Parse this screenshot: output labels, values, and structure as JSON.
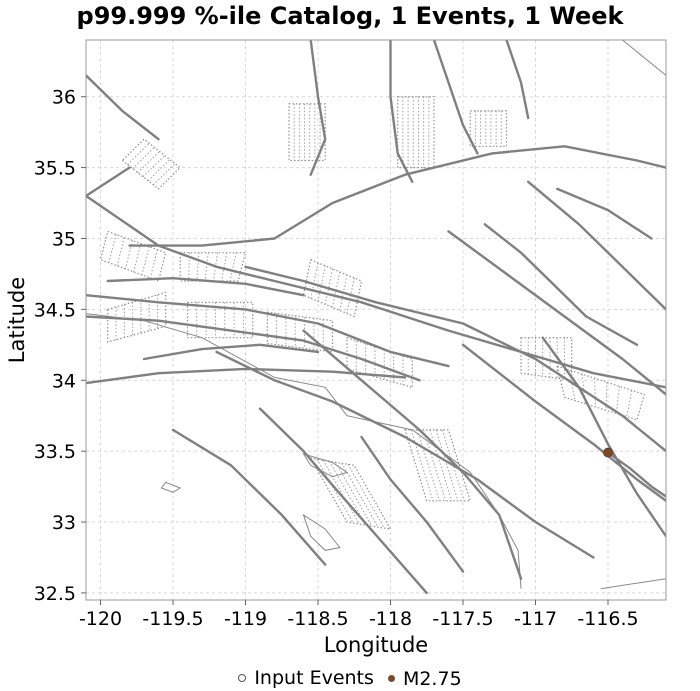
{
  "title": "p99.999 %-ile Catalog, 1 Events, 1 Week",
  "chart_data": {
    "type": "map",
    "xlabel": "Longitude",
    "ylabel": "Latitude",
    "xlim": [
      -120.1,
      -116.1
    ],
    "ylim": [
      32.45,
      36.4
    ],
    "xticks": [
      -120,
      -119.5,
      -119,
      -118.5,
      -118,
      -117.5,
      -117,
      -116.5
    ],
    "xtick_labels": [
      "-120",
      "-119.5",
      "-119",
      "-118.5",
      "-118",
      "-117.5",
      "-117",
      "-116.5"
    ],
    "yticks": [
      32.5,
      33,
      33.5,
      34,
      34.5,
      35,
      35.5,
      36
    ],
    "ytick_labels": [
      "32.5",
      "33",
      "33.5",
      "34",
      "34.5",
      "35",
      "35.5",
      "36"
    ],
    "grid": true,
    "fault_color": "#808080",
    "events": [
      {
        "name": "M2.75",
        "lon": -116.5,
        "lat": 33.49,
        "magnitude": 2.75,
        "color": "#7a4a2a"
      }
    ],
    "legend": {
      "position": "bottom",
      "entries": [
        {
          "label": "Input Events",
          "marker": "open-circle",
          "color": "#555555"
        },
        {
          "label": "M2.75",
          "marker": "filled-circle",
          "color": "#7a4a2a"
        }
      ]
    },
    "fault_traces": [
      [
        [
          -120.1,
          35.3
        ],
        [
          -119.6,
          34.95
        ],
        [
          -119.2,
          34.8
        ],
        [
          -118.8,
          34.7
        ],
        [
          -118.2,
          34.55
        ],
        [
          -117.6,
          34.35
        ],
        [
          -117.1,
          34.2
        ],
        [
          -116.6,
          34.05
        ],
        [
          -116.1,
          33.95
        ]
      ],
      [
        [
          -120.1,
          34.6
        ],
        [
          -119.6,
          34.55
        ],
        [
          -119.0,
          34.5
        ],
        [
          -118.5,
          34.4
        ],
        [
          -118.0,
          34.2
        ],
        [
          -117.6,
          34.1
        ]
      ],
      [
        [
          -120.1,
          34.45
        ],
        [
          -119.6,
          34.42
        ],
        [
          -119.1,
          34.35
        ],
        [
          -118.6,
          34.28
        ],
        [
          -118.2,
          34.15
        ],
        [
          -117.8,
          34.0
        ]
      ],
      [
        [
          -120.1,
          33.98
        ],
        [
          -119.6,
          34.05
        ],
        [
          -119.0,
          34.08
        ],
        [
          -118.4,
          34.06
        ],
        [
          -117.9,
          34.02
        ]
      ],
      [
        [
          -119.2,
          34.2
        ],
        [
          -118.8,
          34.0
        ],
        [
          -118.4,
          33.85
        ],
        [
          -117.9,
          33.6
        ],
        [
          -117.4,
          33.3
        ],
        [
          -117.0,
          33.0
        ],
        [
          -116.6,
          32.75
        ]
      ],
      [
        [
          -118.6,
          34.35
        ],
        [
          -118.2,
          34.0
        ],
        [
          -117.8,
          33.65
        ],
        [
          -117.5,
          33.35
        ],
        [
          -117.25,
          33.05
        ],
        [
          -117.1,
          32.6
        ]
      ],
      [
        [
          -119.0,
          34.8
        ],
        [
          -118.6,
          34.7
        ],
        [
          -118.1,
          34.55
        ],
        [
          -117.5,
          34.4
        ],
        [
          -117.0,
          34.15
        ],
        [
          -116.4,
          33.75
        ],
        [
          -116.1,
          33.5
        ]
      ],
      [
        [
          -117.6,
          35.05
        ],
        [
          -117.2,
          34.75
        ],
        [
          -116.8,
          34.45
        ],
        [
          -116.4,
          34.15
        ],
        [
          -116.1,
          33.9
        ]
      ],
      [
        [
          -116.95,
          34.3
        ],
        [
          -116.7,
          33.95
        ],
        [
          -116.5,
          33.55
        ],
        [
          -116.3,
          33.2
        ],
        [
          -116.1,
          32.9
        ]
      ],
      [
        [
          -117.5,
          34.25
        ],
        [
          -117.0,
          33.85
        ],
        [
          -116.6,
          33.55
        ],
        [
          -116.3,
          33.3
        ],
        [
          -116.1,
          33.15
        ]
      ],
      [
        [
          -116.5,
          33.49
        ],
        [
          -116.35,
          33.38
        ],
        [
          -116.2,
          33.25
        ],
        [
          -116.1,
          33.18
        ]
      ],
      [
        [
          -119.8,
          34.95
        ],
        [
          -119.3,
          34.95
        ],
        [
          -118.8,
          35.0
        ],
        [
          -118.4,
          35.25
        ],
        [
          -117.9,
          35.45
        ],
        [
          -117.3,
          35.6
        ],
        [
          -116.8,
          35.65
        ],
        [
          -116.3,
          35.55
        ],
        [
          -116.1,
          35.5
        ]
      ],
      [
        [
          -117.35,
          35.1
        ],
        [
          -117.1,
          34.9
        ],
        [
          -116.9,
          34.7
        ],
        [
          -116.65,
          34.45
        ],
        [
          -116.3,
          34.25
        ]
      ],
      [
        [
          -117.05,
          35.4
        ],
        [
          -116.7,
          35.1
        ],
        [
          -116.4,
          34.8
        ],
        [
          -116.1,
          34.5
        ]
      ],
      [
        [
          -116.85,
          35.35
        ],
        [
          -116.5,
          35.2
        ],
        [
          -116.2,
          35.0
        ]
      ],
      [
        [
          -118.0,
          36.4
        ],
        [
          -118.0,
          36.0
        ],
        [
          -117.95,
          35.6
        ],
        [
          -117.85,
          35.4
        ]
      ],
      [
        [
          -118.55,
          36.4
        ],
        [
          -118.5,
          36.0
        ],
        [
          -118.45,
          35.7
        ],
        [
          -118.55,
          35.45
        ]
      ],
      [
        [
          -117.7,
          36.4
        ],
        [
          -117.6,
          36.1
        ],
        [
          -117.5,
          35.8
        ],
        [
          -117.4,
          35.6
        ]
      ],
      [
        [
          -117.2,
          36.4
        ],
        [
          -117.1,
          36.1
        ],
        [
          -117.05,
          35.85
        ]
      ],
      [
        [
          -119.6,
          35.7
        ],
        [
          -119.85,
          35.9
        ],
        [
          -120.1,
          36.15
        ]
      ],
      [
        [
          -119.8,
          35.5
        ],
        [
          -120.1,
          35.3
        ]
      ],
      [
        [
          -118.2,
          33.6
        ],
        [
          -118.0,
          33.3
        ],
        [
          -117.75,
          33.0
        ],
        [
          -117.5,
          32.65
        ]
      ],
      [
        [
          -118.9,
          33.8
        ],
        [
          -118.6,
          33.5
        ],
        [
          -118.35,
          33.2
        ],
        [
          -118.05,
          32.85
        ],
        [
          -117.75,
          32.5
        ]
      ],
      [
        [
          -119.5,
          33.65
        ],
        [
          -119.1,
          33.4
        ],
        [
          -118.75,
          33.05
        ],
        [
          -118.45,
          32.7
        ]
      ],
      [
        [
          -119.7,
          34.15
        ],
        [
          -119.3,
          34.22
        ],
        [
          -118.9,
          34.25
        ],
        [
          -118.5,
          34.2
        ]
      ],
      [
        [
          -119.95,
          34.7
        ],
        [
          -119.5,
          34.72
        ],
        [
          -119.0,
          34.68
        ],
        [
          -118.6,
          34.6
        ]
      ]
    ],
    "zone_polygons": [
      [
        [
          -119.95,
          34.5
        ],
        [
          -119.55,
          34.62
        ],
        [
          -119.55,
          34.38
        ],
        [
          -119.95,
          34.27
        ]
      ],
      [
        [
          -119.4,
          34.55
        ],
        [
          -118.95,
          34.55
        ],
        [
          -118.95,
          34.3
        ],
        [
          -119.4,
          34.3
        ]
      ],
      [
        [
          -118.85,
          34.48
        ],
        [
          -118.4,
          34.42
        ],
        [
          -118.4,
          34.2
        ],
        [
          -118.85,
          34.26
        ]
      ],
      [
        [
          -118.3,
          34.3
        ],
        [
          -117.85,
          34.15
        ],
        [
          -117.85,
          33.95
        ],
        [
          -118.3,
          34.08
        ]
      ],
      [
        [
          -119.95,
          35.05
        ],
        [
          -119.55,
          34.9
        ],
        [
          -119.6,
          34.7
        ],
        [
          -120.0,
          34.85
        ]
      ],
      [
        [
          -119.45,
          34.9
        ],
        [
          -119.0,
          34.9
        ],
        [
          -119.05,
          34.7
        ],
        [
          -119.45,
          34.7
        ]
      ],
      [
        [
          -118.7,
          35.95
        ],
        [
          -118.45,
          35.95
        ],
        [
          -118.45,
          35.55
        ],
        [
          -118.7,
          35.55
        ]
      ],
      [
        [
          -117.95,
          36.0
        ],
        [
          -117.7,
          36.0
        ],
        [
          -117.7,
          35.5
        ],
        [
          -117.95,
          35.5
        ]
      ],
      [
        [
          -117.45,
          35.9
        ],
        [
          -117.2,
          35.9
        ],
        [
          -117.2,
          35.65
        ],
        [
          -117.45,
          35.65
        ]
      ],
      [
        [
          -117.9,
          33.65
        ],
        [
          -117.6,
          33.65
        ],
        [
          -117.45,
          33.15
        ],
        [
          -117.75,
          33.15
        ]
      ],
      [
        [
          -118.55,
          33.45
        ],
        [
          -118.25,
          33.4
        ],
        [
          -118.0,
          32.95
        ],
        [
          -118.3,
          33.0
        ]
      ],
      [
        [
          -117.1,
          34.3
        ],
        [
          -116.75,
          34.3
        ],
        [
          -116.75,
          34.0
        ],
        [
          -117.1,
          34.05
        ]
      ],
      [
        [
          -116.85,
          34.1
        ],
        [
          -116.25,
          33.9
        ],
        [
          -116.3,
          33.72
        ],
        [
          -116.8,
          33.88
        ]
      ],
      [
        [
          -119.85,
          35.55
        ],
        [
          -119.6,
          35.35
        ],
        [
          -119.45,
          35.5
        ],
        [
          -119.7,
          35.7
        ]
      ],
      [
        [
          -118.55,
          34.85
        ],
        [
          -118.2,
          34.7
        ],
        [
          -118.25,
          34.45
        ],
        [
          -118.6,
          34.6
        ]
      ]
    ],
    "coastline": [
      [
        [
          -116.55,
          32.53
        ],
        [
          -116.1,
          32.6
        ]
      ],
      [
        [
          -117.1,
          32.53
        ],
        [
          -117.12,
          32.8
        ],
        [
          -117.25,
          33.05
        ],
        [
          -117.45,
          33.35
        ],
        [
          -117.85,
          33.65
        ],
        [
          -118.3,
          33.75
        ],
        [
          -118.45,
          33.95
        ],
        [
          -118.8,
          34.02
        ],
        [
          -119.3,
          34.3
        ],
        [
          -119.7,
          34.42
        ],
        [
          -120.1,
          34.47
        ]
      ],
      [
        [
          -116.4,
          36.4
        ],
        [
          -116.1,
          36.15
        ]
      ]
    ],
    "islands": [
      [
        [
          -118.6,
          33.48
        ],
        [
          -118.4,
          33.42
        ],
        [
          -118.3,
          33.35
        ],
        [
          -118.4,
          33.32
        ],
        [
          -118.55,
          33.4
        ],
        [
          -118.6,
          33.48
        ]
      ],
      [
        [
          -118.6,
          33.05
        ],
        [
          -118.45,
          32.95
        ],
        [
          -118.35,
          32.82
        ],
        [
          -118.45,
          32.8
        ],
        [
          -118.55,
          32.9
        ],
        [
          -118.6,
          33.05
        ]
      ],
      [
        [
          -119.55,
          33.28
        ],
        [
          -119.45,
          33.24
        ],
        [
          -119.5,
          33.21
        ],
        [
          -119.58,
          33.24
        ],
        [
          -119.55,
          33.28
        ]
      ]
    ]
  }
}
